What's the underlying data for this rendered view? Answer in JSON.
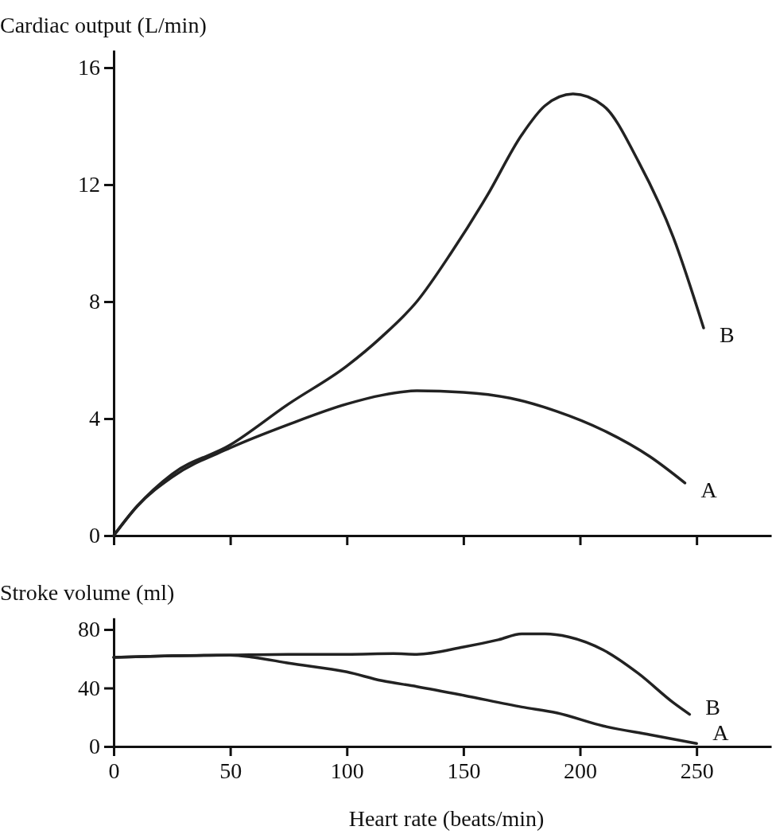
{
  "chart_data": [
    {
      "type": "line",
      "ylabel": "Cardiac output (L/min)",
      "xlim": [
        0,
        282
      ],
      "xticks": [
        {
          "value": 0,
          "label": null
        },
        {
          "value": 50,
          "label": null
        },
        {
          "value": 100,
          "label": null
        },
        {
          "value": 150,
          "label": null
        },
        {
          "value": 200,
          "label": null
        },
        {
          "value": 250,
          "label": null
        }
      ],
      "ylim": [
        0,
        16.6
      ],
      "yticks": [
        0,
        4,
        8,
        12,
        16
      ],
      "tick_labels": "y",
      "grid": false,
      "legend": false,
      "line_style": "solid",
      "marker": "none",
      "series": [
        {
          "name": "A",
          "color": "#222222",
          "x": [
            0,
            10,
            25,
            50,
            75,
            100,
            115,
            130,
            150,
            170,
            190,
            210,
            230,
            245
          ],
          "values": [
            0,
            1.0,
            2.0,
            3.0,
            3.8,
            4.5,
            4.8,
            4.95,
            4.9,
            4.7,
            4.25,
            3.6,
            2.7,
            1.8
          ]
        },
        {
          "name": "B",
          "color": "#222222",
          "x": [
            0,
            10,
            25,
            50,
            75,
            100,
            115,
            130,
            145,
            160,
            175,
            185,
            197,
            210,
            225,
            240,
            253
          ],
          "values": [
            0,
            1.0,
            2.1,
            3.1,
            4.5,
            5.8,
            6.8,
            8.0,
            9.7,
            11.6,
            13.7,
            14.7,
            15.1,
            14.7,
            12.8,
            10.2,
            7.1
          ]
        }
      ]
    },
    {
      "type": "line",
      "ylabel": "Stroke volume (ml)",
      "xlabel": "Heart rate (beats/min)",
      "xlim": [
        0,
        282
      ],
      "xticks": [
        0,
        50,
        100,
        150,
        200,
        250
      ],
      "ylim": [
        0,
        88
      ],
      "yticks": [
        0,
        40,
        80
      ],
      "grid": false,
      "legend": false,
      "line_style": "solid",
      "marker": "none",
      "series": [
        {
          "name": "A",
          "color": "#222222",
          "x": [
            0,
            25,
            50,
            60,
            75,
            100,
            115,
            130,
            150,
            175,
            190,
            210,
            230,
            250
          ],
          "values": [
            61,
            62,
            62.5,
            61,
            57,
            51,
            45,
            41,
            35,
            27,
            23,
            14,
            8,
            2
          ]
        },
        {
          "name": "B",
          "color": "#222222",
          "x": [
            0,
            25,
            50,
            75,
            100,
            120,
            130,
            150,
            165,
            175,
            185,
            195,
            210,
            225,
            240,
            247
          ],
          "values": [
            61,
            62,
            62.5,
            63,
            63,
            63.5,
            63,
            68,
            73,
            77,
            77,
            75,
            66,
            50,
            30,
            22
          ]
        }
      ]
    }
  ]
}
